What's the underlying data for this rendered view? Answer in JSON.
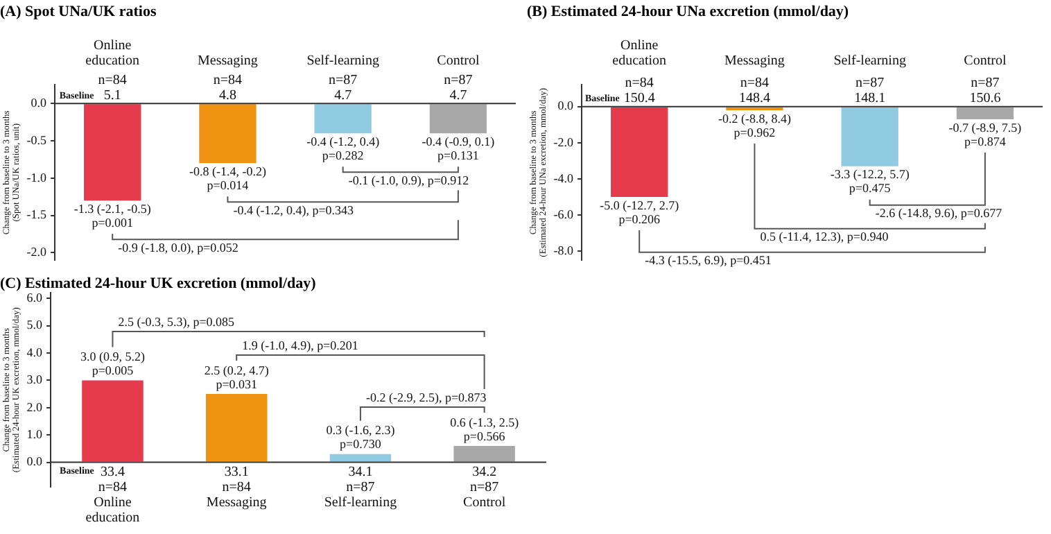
{
  "chart_data": [
    {
      "type": "bar",
      "title": "(A) Spot UNa/UK ratios",
      "ylabel": "Change from baseline to 3 months\n(Spot UNa/UK ratios, unit)",
      "categories": [
        "Online education",
        "Messaging",
        "Self-learning",
        "Control"
      ],
      "values": [
        -1.3,
        -0.8,
        -0.4,
        -0.4
      ],
      "colors": [
        "#e63b4c",
        "#f09312",
        "#90cbe2",
        "#a8a8a8"
      ],
      "value_labels": [
        "-1.3 (-2.1, -0.5)\np=0.001",
        "-0.8 (-1.4, -0.2)\np=0.014",
        "-0.4 (-1.2, 0.4)\np=0.282",
        "-0.4 (-0.9, 0.1)\np=0.131"
      ],
      "ylim": [
        -2.1,
        0.25
      ],
      "yticks": [
        {
          "value": 0,
          "label": "0.0"
        },
        {
          "value": -0.5,
          "label": "-0.5"
        },
        {
          "value": -1,
          "label": "-1.0"
        },
        {
          "value": -1.5,
          "label": "-1.5"
        },
        {
          "value": -2,
          "label": "-2.0"
        }
      ],
      "annotations": [
        "Baseline",
        "n=84\n5.1",
        "n=84\n4.8",
        "n=87\n4.7",
        "n=87\n4.7",
        "-0.1 (-1.0, 0.9), p=0.912",
        "-0.4 (-1.2, 0.4), p=0.343",
        "-0.9 (-1.8, 0.0), p=0.052"
      ]
    },
    {
      "type": "bar",
      "title": "(B) Estimated 24-hour UNa excretion (mmol/day)",
      "ylabel": "Change from baseline to 3 months\n(Estimated 24-hour UNa excretion, mmol/day)",
      "categories": [
        "Online education",
        "Messaging",
        "Self-learning",
        "Control"
      ],
      "values": [
        -5.0,
        -0.2,
        -3.3,
        -0.7
      ],
      "colors": [
        "#e63b4c",
        "#f09312",
        "#90cbe2",
        "#a8a8a8"
      ],
      "value_labels": [
        "-5.0 (-12.7, 2.7)\np=0.206",
        "-0.2 (-8.8, 8.4)\np=0.962",
        "-3.3 (-12.2, 5.7)\np=0.475",
        "-0.7 (-8.9, 7.5)\np=0.874"
      ],
      "ylim": [
        -8.5,
        1.2
      ],
      "yticks": [
        {
          "value": 0,
          "label": "0.0"
        },
        {
          "value": -2,
          "label": "-2.0"
        },
        {
          "value": -4,
          "label": "-4.0"
        },
        {
          "value": -6,
          "label": "-6.0"
        },
        {
          "value": -8,
          "label": "-8.0"
        }
      ],
      "annotations": [
        "Baseline",
        "n=84\n150.4",
        "n=84\n148.4",
        "n=87\n148.1",
        "n=87\n150.6",
        "-2.6 (-14.8, 9.6), p=0.677",
        "0.5 (-11.4, 12.3), p=0.940",
        "-4.3 (-15.5, 6.9), p=0.451"
      ]
    },
    {
      "type": "bar",
      "title": "(C) Estimated 24-hour UK excretion (mmol/day)",
      "ylabel": "Change from baseline to 3 months\n(Estimated 24-hour UK excretion, mmol/day)",
      "categories": [
        "Online education",
        "Messaging",
        "Self-learning",
        "Control"
      ],
      "values": [
        3.0,
        2.5,
        0.3,
        0.6
      ],
      "colors": [
        "#e63b4c",
        "#f09312",
        "#90cbe2",
        "#a8a8a8"
      ],
      "value_labels": [
        "3.0 (0.9, 5.2)\np=0.005",
        "2.5 (0.2, 4.7)\np=0.031",
        "0.3 (-1.6, 2.3)\np=0.730",
        "0.6 (-1.3, 2.5)\np=0.566"
      ],
      "ylim": [
        -0.9,
        6.2
      ],
      "yticks": [
        {
          "value": 0,
          "label": "0.0"
        },
        {
          "value": 1,
          "label": "1.0"
        },
        {
          "value": 2,
          "label": "2.0"
        },
        {
          "value": 3,
          "label": "3.0"
        },
        {
          "value": 4,
          "label": "4.0"
        },
        {
          "value": 5,
          "label": "5.0"
        },
        {
          "value": 6,
          "label": "6.0"
        }
      ],
      "annotations": [
        "Baseline",
        "33.4\nn=84",
        "33.1\nn=84",
        "34.1\nn=87",
        "34.2\nn=87",
        "2.5 (-0.3, 5.3), p=0.085",
        "1.9 (-1.0, 4.9), p=0.201",
        "-0.2 (-2.9, 2.5), p=0.873"
      ]
    }
  ]
}
